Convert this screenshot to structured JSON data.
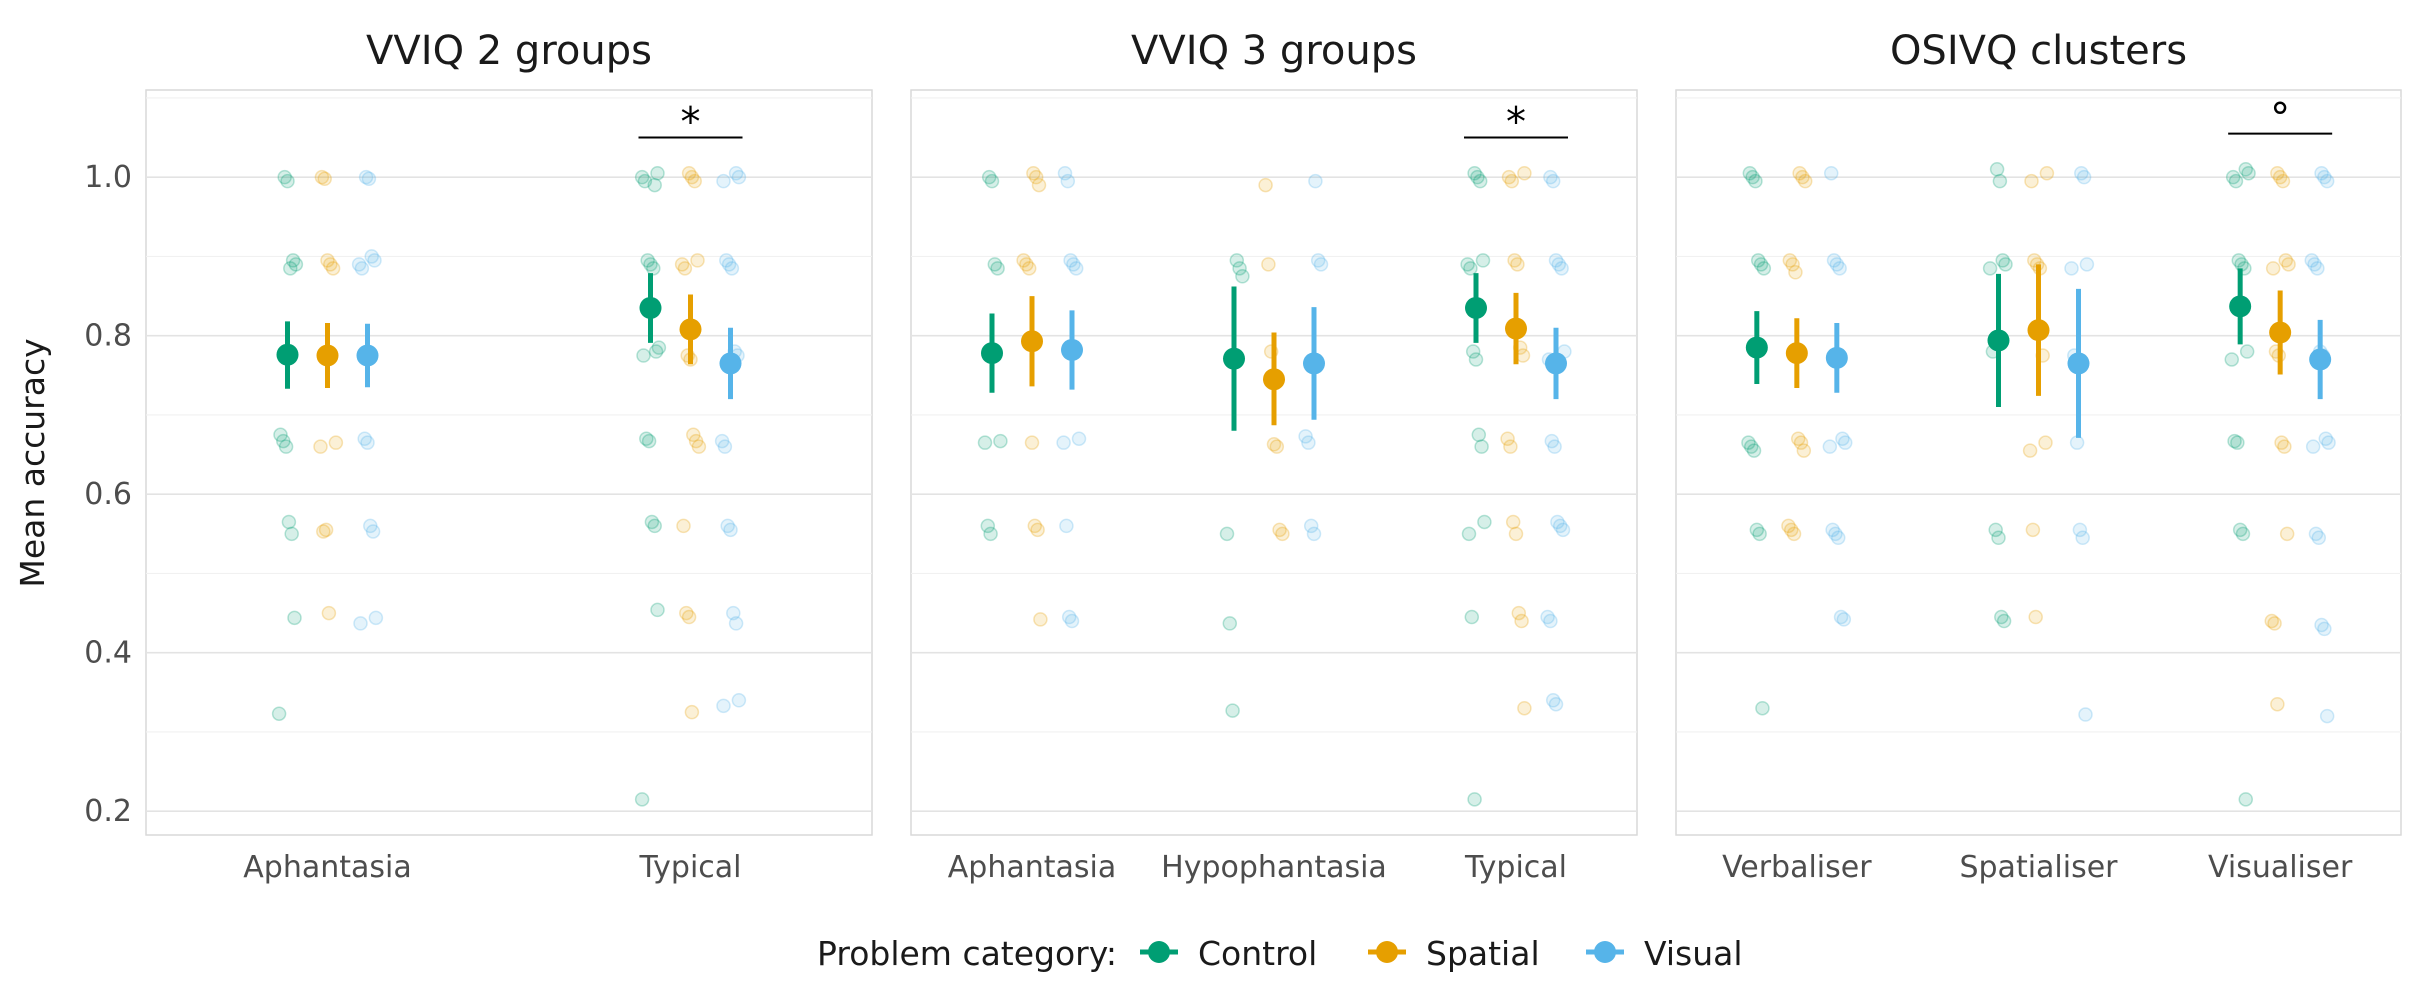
{
  "chart_data": [
    {
      "type": "scatter",
      "title": "VVIQ 2 groups",
      "ylabel": "Mean accuracy",
      "ylim": [
        0.17,
        1.11
      ],
      "yticks": [
        0.2,
        0.4,
        0.6,
        0.8,
        1.0
      ],
      "ytick_labels": [
        "0.2",
        "0.4",
        "0.6",
        "0.8",
        "1.0"
      ],
      "grid": true,
      "categories": [
        "Aphantasia",
        "Typical"
      ],
      "series": [
        {
          "name": "Control",
          "color": "#009E73",
          "means": [
            0.776,
            0.835
          ],
          "lower": [
            0.733,
            0.791
          ],
          "upper": [
            0.818,
            0.879
          ],
          "points": [
            [
              0.323,
              0.444,
              0.55,
              0.565,
              0.66,
              0.667,
              0.675,
              0.89,
              0.895,
              0.885,
              0.995,
              1.0
            ],
            [
              0.215,
              0.454,
              0.56,
              0.565,
              0.667,
              0.67,
              0.775,
              0.785,
              0.78,
              0.885,
              0.89,
              0.895,
              0.995,
              1.0,
              1.005,
              0.99
            ]
          ]
        },
        {
          "name": "Spatial",
          "color": "#E69F00",
          "means": [
            0.775,
            0.808
          ],
          "lower": [
            0.734,
            0.764
          ],
          "upper": [
            0.816,
            0.852
          ],
          "points": [
            [
              0.45,
              0.555,
              0.553,
              0.66,
              0.665,
              0.885,
              0.89,
              0.895,
              0.998,
              1.0
            ],
            [
              0.325,
              0.445,
              0.45,
              0.56,
              0.66,
              0.667,
              0.675,
              0.77,
              0.775,
              0.885,
              0.89,
              0.895,
              0.995,
              1.0,
              1.005
            ]
          ]
        },
        {
          "name": "Visual",
          "color": "#56B4E9",
          "means": [
            0.775,
            0.765
          ],
          "lower": [
            0.735,
            0.72
          ],
          "upper": [
            0.815,
            0.81
          ],
          "points": [
            [
              0.437,
              0.444,
              0.553,
              0.56,
              0.665,
              0.67,
              0.885,
              0.89,
              0.895,
              0.9,
              0.998,
              1.0
            ],
            [
              0.333,
              0.34,
              0.437,
              0.45,
              0.555,
              0.56,
              0.66,
              0.667,
              0.775,
              0.78,
              0.885,
              0.89,
              0.895,
              0.995,
              1.0,
              1.005
            ]
          ]
        }
      ],
      "annotation": {
        "label": "*",
        "category": "Typical",
        "y": 1.05
      }
    },
    {
      "type": "scatter",
      "title": "VVIQ 3 groups",
      "ylim": [
        0.17,
        1.11
      ],
      "grid": true,
      "categories": [
        "Aphantasia",
        "Hypophantasia",
        "Typical"
      ],
      "series": [
        {
          "name": "Control",
          "color": "#009E73",
          "means": [
            0.778,
            0.771,
            0.835
          ],
          "lower": [
            0.728,
            0.68,
            0.791
          ],
          "upper": [
            0.828,
            0.862,
            0.879
          ],
          "points": [
            [
              0.55,
              0.56,
              0.665,
              0.667,
              0.885,
              0.89,
              0.995,
              1.0
            ],
            [
              0.327,
              0.437,
              0.55,
              0.875,
              0.885,
              0.895
            ],
            [
              0.215,
              0.445,
              0.55,
              0.565,
              0.66,
              0.675,
              0.77,
              0.78,
              0.885,
              0.89,
              0.895,
              0.995,
              1.0,
              1.005
            ]
          ]
        },
        {
          "name": "Spatial",
          "color": "#E69F00",
          "means": [
            0.793,
            0.745,
            0.809
          ],
          "lower": [
            0.736,
            0.687,
            0.764
          ],
          "upper": [
            0.85,
            0.804,
            0.854
          ],
          "points": [
            [
              0.442,
              0.555,
              0.56,
              0.665,
              0.885,
              0.89,
              0.895,
              0.99,
              1.0,
              1.005
            ],
            [
              0.55,
              0.555,
              0.66,
              0.663,
              0.78,
              0.89,
              0.99
            ],
            [
              0.33,
              0.44,
              0.45,
              0.55,
              0.565,
              0.66,
              0.67,
              0.775,
              0.785,
              0.89,
              0.895,
              0.995,
              1.0,
              1.005
            ]
          ]
        },
        {
          "name": "Visual",
          "color": "#56B4E9",
          "means": [
            0.782,
            0.765,
            0.765
          ],
          "lower": [
            0.732,
            0.694,
            0.72
          ],
          "upper": [
            0.832,
            0.836,
            0.81
          ],
          "points": [
            [
              0.44,
              0.445,
              0.56,
              0.665,
              0.67,
              0.885,
              0.89,
              0.895,
              0.995,
              1.005
            ],
            [
              0.55,
              0.56,
              0.665,
              0.673,
              0.89,
              0.895,
              0.995
            ],
            [
              0.335,
              0.34,
              0.44,
              0.445,
              0.555,
              0.56,
              0.565,
              0.66,
              0.667,
              0.77,
              0.78,
              0.885,
              0.89,
              0.895,
              0.995,
              1.0
            ]
          ]
        }
      ],
      "annotation": {
        "label": "*",
        "category": "Typical",
        "y": 1.05
      }
    },
    {
      "type": "scatter",
      "title": "OSIVQ clusters",
      "ylim": [
        0.17,
        1.11
      ],
      "grid": true,
      "categories": [
        "Verbaliser",
        "Spatialiser",
        "Visualiser"
      ],
      "series": [
        {
          "name": "Control",
          "color": "#009E73",
          "means": [
            0.785,
            0.794,
            0.837
          ],
          "lower": [
            0.739,
            0.71,
            0.789
          ],
          "upper": [
            0.831,
            0.878,
            0.885
          ],
          "points": [
            [
              0.33,
              0.55,
              0.555,
              0.655,
              0.66,
              0.665,
              0.885,
              0.89,
              0.895,
              0.995,
              1.0,
              1.005
            ],
            [
              0.44,
              0.445,
              0.545,
              0.555,
              0.78,
              0.885,
              0.89,
              0.895,
              0.995,
              1.01
            ],
            [
              0.215,
              0.55,
              0.555,
              0.665,
              0.667,
              0.77,
              0.78,
              0.885,
              0.89,
              0.895,
              0.995,
              1.0,
              1.005,
              1.01
            ]
          ]
        },
        {
          "name": "Spatial",
          "color": "#E69F00",
          "means": [
            0.778,
            0.807,
            0.804
          ],
          "lower": [
            0.734,
            0.724,
            0.751
          ],
          "upper": [
            0.822,
            0.89,
            0.857
          ],
          "points": [
            [
              0.55,
              0.555,
              0.56,
              0.655,
              0.665,
              0.67,
              0.88,
              0.89,
              0.895,
              0.995,
              1.0,
              1.005
            ],
            [
              0.445,
              0.555,
              0.655,
              0.665,
              0.775,
              0.885,
              0.89,
              0.895,
              0.995,
              1.005
            ],
            [
              0.335,
              0.437,
              0.44,
              0.55,
              0.66,
              0.665,
              0.775,
              0.78,
              0.885,
              0.89,
              0.895,
              0.995,
              1.0,
              1.005
            ]
          ]
        },
        {
          "name": "Visual",
          "color": "#56B4E9",
          "means": [
            0.772,
            0.765,
            0.77
          ],
          "lower": [
            0.728,
            0.671,
            0.72
          ],
          "upper": [
            0.816,
            0.859,
            0.82
          ],
          "points": [
            [
              0.442,
              0.445,
              0.545,
              0.55,
              0.555,
              0.66,
              0.665,
              0.67,
              0.885,
              0.89,
              0.895,
              1.005
            ],
            [
              0.322,
              0.545,
              0.555,
              0.665,
              0.775,
              0.885,
              0.89,
              1.0,
              1.005
            ],
            [
              0.32,
              0.43,
              0.435,
              0.545,
              0.55,
              0.66,
              0.665,
              0.67,
              0.775,
              0.78,
              0.885,
              0.89,
              0.895,
              0.995,
              1.0,
              1.005
            ]
          ]
        }
      ],
      "annotation": {
        "label": "°",
        "category": "Visualiser",
        "y": 1.055
      }
    }
  ],
  "legend": {
    "title": "Problem category:",
    "placement": "bottom",
    "items": [
      {
        "label": "Control",
        "color": "#009E73"
      },
      {
        "label": "Spatial",
        "color": "#E69F00"
      },
      {
        "label": "Visual",
        "color": "#56B4E9"
      }
    ]
  }
}
